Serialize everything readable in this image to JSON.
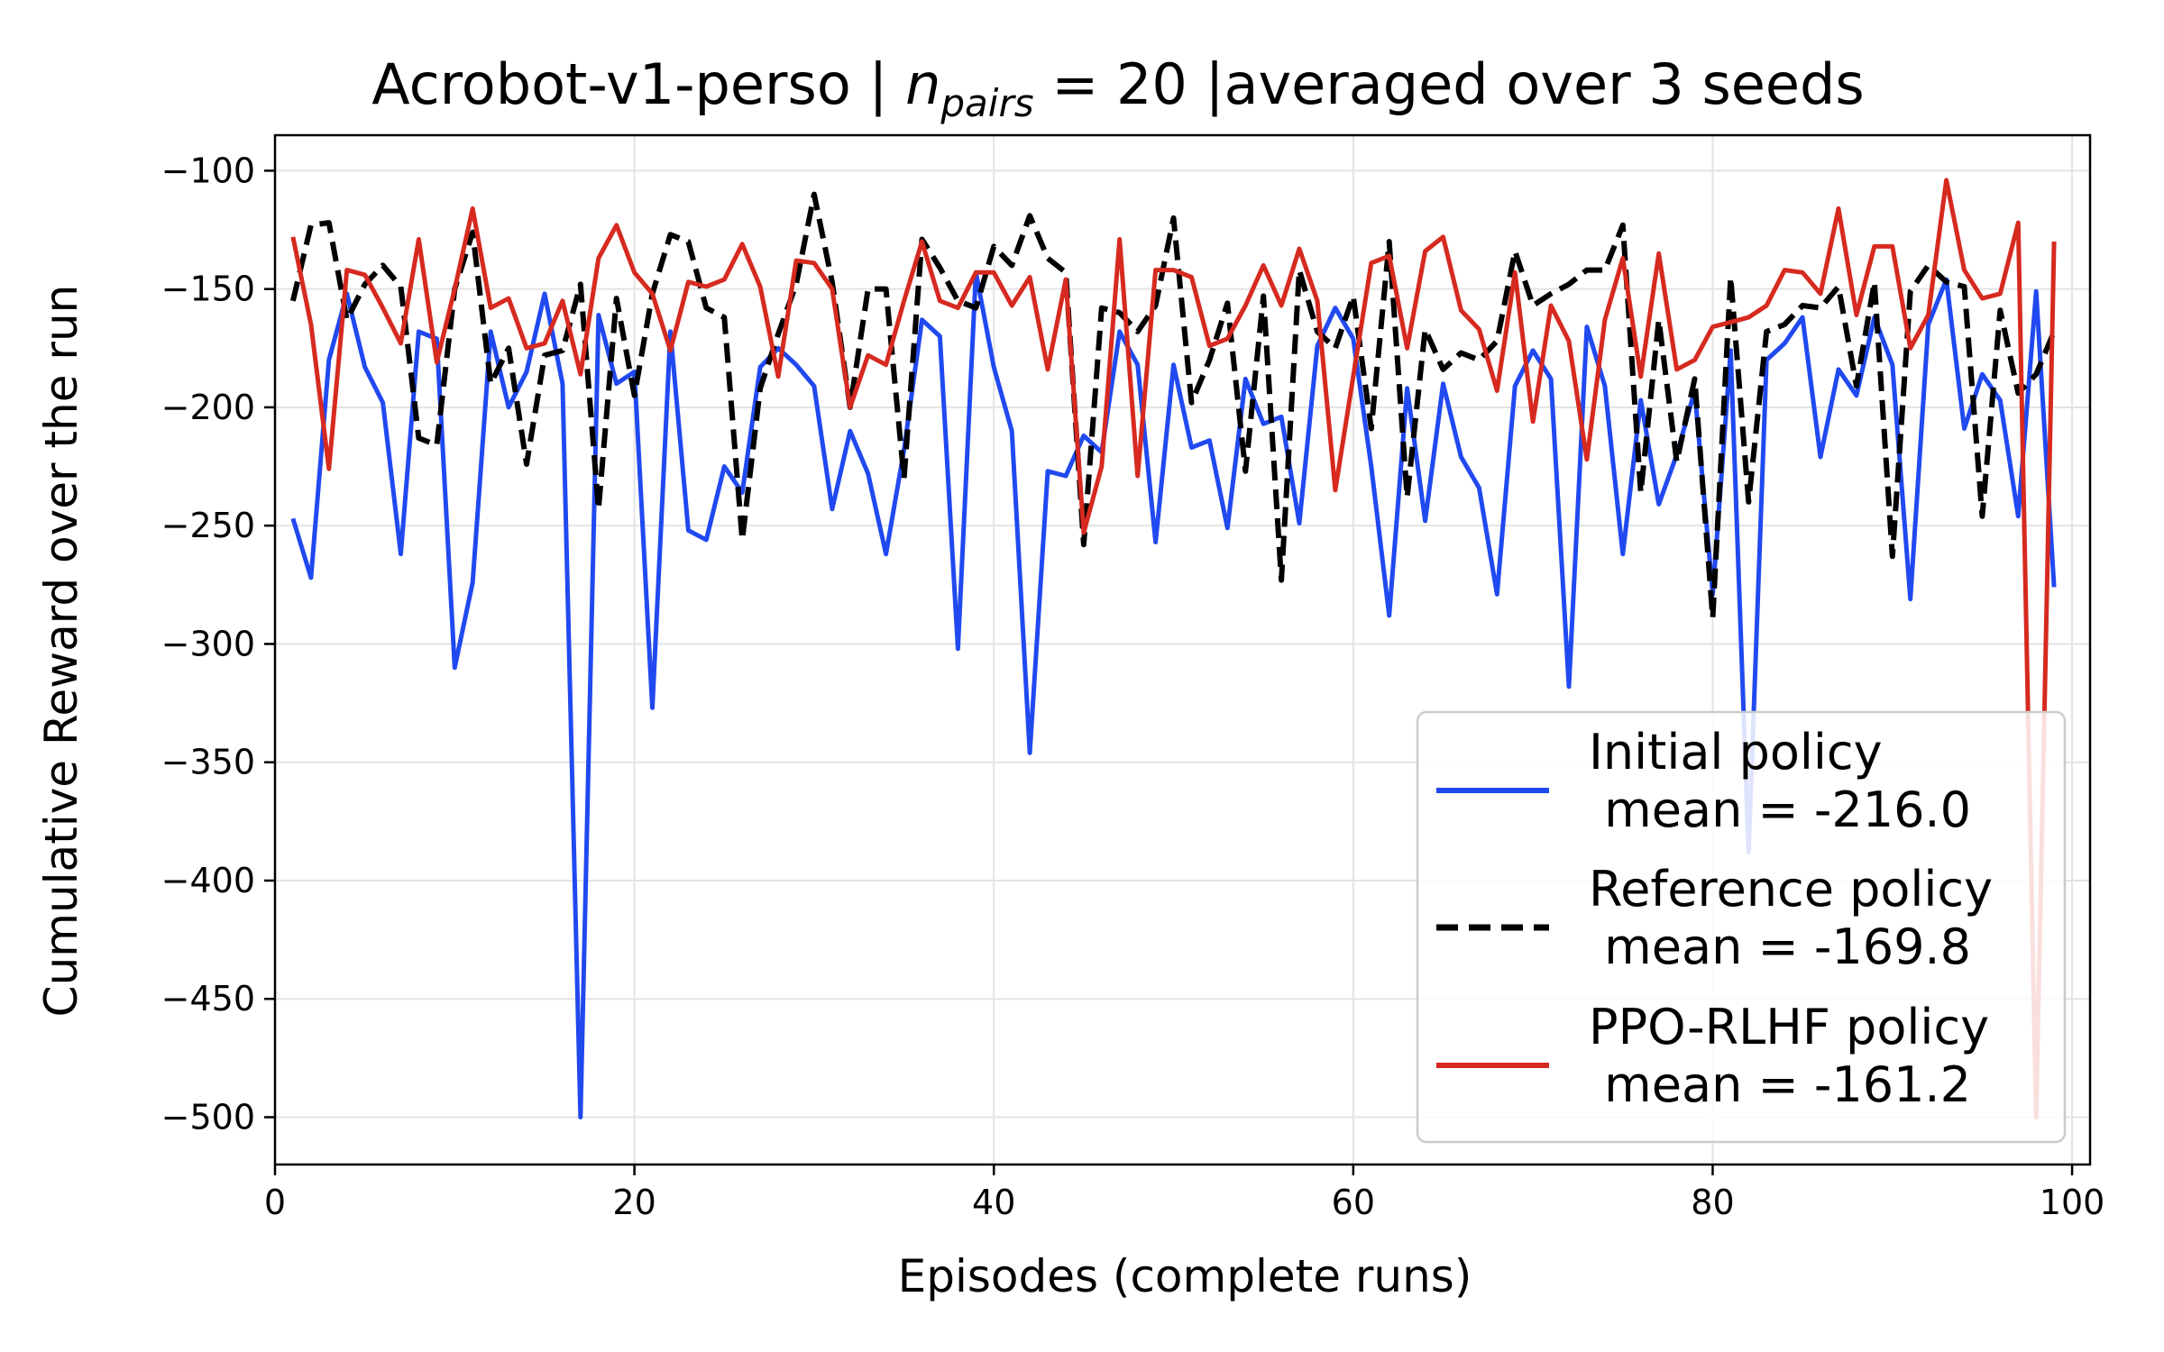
{
  "chart_data": {
    "type": "line",
    "title": {
      "prefix": "Acrobot-v1-perso | ",
      "math_var": "n",
      "math_sub": "pairs",
      "suffix": " = 20 |averaged over 3 seeds"
    },
    "xlabel": "Episodes (complete runs)",
    "ylabel": "Cumulative Reward over the run",
    "xlim": [
      0,
      101
    ],
    "ylim": [
      -520,
      -85
    ],
    "x_ticks": [
      0,
      20,
      40,
      60,
      80,
      100
    ],
    "y_ticks": [
      -100,
      -150,
      -200,
      -250,
      -300,
      -350,
      -400,
      -450,
      -500
    ],
    "y_tick_labels": [
      "−100",
      "−150",
      "−200",
      "−250",
      "−300",
      "−350",
      "−400",
      "−450",
      "−500"
    ],
    "grid": true,
    "legend_position": "lower right",
    "series": [
      {
        "name": "Initial policy\n mean = -216.0",
        "color": "#2149f0",
        "dash": "solid",
        "x_start": 1,
        "values": [
          -247,
          -272,
          -180,
          -152,
          -183,
          -198,
          -262,
          -168,
          -171,
          -310,
          -274,
          -168,
          -200,
          -185,
          -152,
          -190,
          -500,
          -161,
          -190,
          -185,
          -327,
          -168,
          -252,
          -256,
          -225,
          -236,
          -183,
          -175,
          -182,
          -191,
          -243,
          -210,
          -228,
          -262,
          -218,
          -163,
          -170,
          -302,
          -143,
          -183,
          -210,
          -346,
          -227,
          -229,
          -212,
          -219,
          -168,
          -182,
          -257,
          -182,
          -217,
          -214,
          -251,
          -188,
          -207,
          -204,
          -249,
          -174,
          -158,
          -171,
          -225,
          -288,
          -192,
          -248,
          -190,
          -221,
          -234,
          -279,
          -191,
          -176,
          -188,
          -318,
          -166,
          -191,
          -262,
          -197,
          -241,
          -220,
          -193,
          -279,
          -176,
          -388,
          -180,
          -173,
          -162,
          -221,
          -184,
          -195,
          -162,
          -182,
          -281,
          -165,
          -146,
          -209,
          -186,
          -197,
          -246,
          -151,
          -276
        ]
      },
      {
        "name": "Reference policy\n mean = -169.8",
        "color": "#000000",
        "dash": "dashed",
        "x_start": 1,
        "values": [
          -155,
          -123,
          -122,
          -163,
          -148,
          -140,
          -149,
          -213,
          -216,
          -150,
          -126,
          -190,
          -175,
          -224,
          -178,
          -176,
          -148,
          -243,
          -154,
          -195,
          -152,
          -127,
          -130,
          -158,
          -162,
          -256,
          -192,
          -169,
          -148,
          -110,
          -147,
          -200,
          -150,
          -150,
          -230,
          -129,
          -141,
          -155,
          -158,
          -132,
          -140,
          -119,
          -137,
          -143,
          -258,
          -158,
          -160,
          -168,
          -157,
          -120,
          -198,
          -180,
          -156,
          -227,
          -153,
          -273,
          -142,
          -168,
          -175,
          -153,
          -209,
          -130,
          -238,
          -167,
          -184,
          -177,
          -180,
          -172,
          -134,
          -157,
          -152,
          -148,
          -142,
          -142,
          -123,
          -236,
          -163,
          -223,
          -188,
          -289,
          -145,
          -240,
          -168,
          -165,
          -157,
          -158,
          -149,
          -191,
          -147,
          -263,
          -151,
          -140,
          -147,
          -149,
          -246,
          -159,
          -194,
          -186,
          -168
        ]
      },
      {
        "name": "PPO-RLHF policy\n mean = -161.2",
        "color": "#d62a20",
        "dash": "solid",
        "x_start": 1,
        "values": [
          -128,
          -165,
          -226,
          -142,
          -144,
          -158,
          -173,
          -129,
          -181,
          -150,
          -116,
          -158,
          -154,
          -175,
          -173,
          -155,
          -186,
          -137,
          -123,
          -143,
          -152,
          -176,
          -147,
          -149,
          -146,
          -131,
          -149,
          -187,
          -138,
          -139,
          -150,
          -200,
          -178,
          -182,
          -155,
          -130,
          -155,
          -158,
          -143,
          -143,
          -157,
          -145,
          -184,
          -146,
          -253,
          -225,
          -129,
          -229,
          -142,
          -142,
          -145,
          -174,
          -171,
          -157,
          -140,
          -157,
          -133,
          -155,
          -235,
          -187,
          -139,
          -136,
          -175,
          -134,
          -128,
          -159,
          -167,
          -193,
          -143,
          -206,
          -157,
          -172,
          -222,
          -163,
          -137,
          -187,
          -135,
          -184,
          -180,
          -166,
          -164,
          -162,
          -157,
          -142,
          -143,
          -152,
          -116,
          -161,
          -132,
          -132,
          -175,
          -161,
          -104,
          -142,
          -154,
          -152,
          -122,
          -500,
          -130
        ]
      }
    ]
  }
}
